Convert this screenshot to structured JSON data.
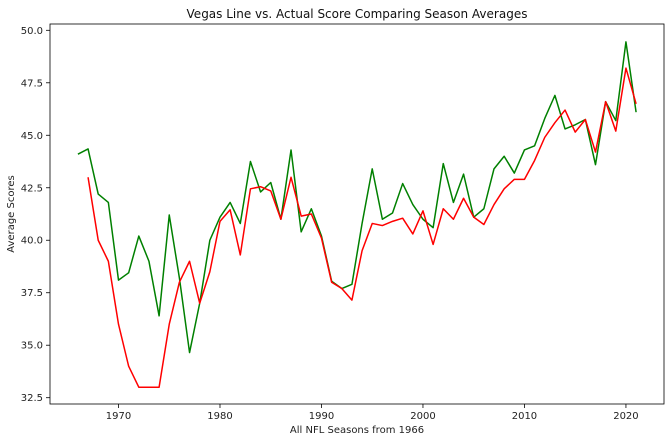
{
  "chart_data": {
    "type": "line",
    "title": "Vegas Line vs. Actual Score Comparing Season Averages",
    "xlabel": "All NFL Seasons from 1966",
    "ylabel": "Average Scores",
    "xlim": [
      1963.25,
      2023.75
    ],
    "ylim": [
      32.2,
      50.3
    ],
    "xticks": [
      1970,
      1980,
      1990,
      2000,
      2010,
      2020
    ],
    "yticks": [
      32.5,
      35.0,
      37.5,
      40.0,
      42.5,
      45.0,
      47.5,
      50.0
    ],
    "ytick_labels": [
      "32.5",
      "35.0",
      "37.5",
      "40.0",
      "42.5",
      "45.0",
      "47.5",
      "50.0"
    ],
    "grid": false,
    "series": [
      {
        "color": "#008000",
        "x": [
          1966,
          1967,
          1968,
          1969,
          1970,
          1971,
          1972,
          1973,
          1974,
          1975,
          1976,
          1977,
          1978,
          1979,
          1980,
          1981,
          1982,
          1983,
          1984,
          1985,
          1986,
          1987,
          1988,
          1989,
          1990,
          1991,
          1992,
          1993,
          1994,
          1995,
          1996,
          1997,
          1998,
          1999,
          2000,
          2001,
          2002,
          2003,
          2004,
          2005,
          2006,
          2007,
          2008,
          2009,
          2010,
          2011,
          2012,
          2013,
          2014,
          2015,
          2016,
          2017,
          2018,
          2019,
          2020,
          2021
        ],
        "values": [
          44.1,
          44.35,
          42.2,
          41.8,
          38.1,
          38.45,
          40.2,
          39.0,
          36.4,
          41.2,
          38.2,
          34.65,
          37.0,
          40.0,
          41.1,
          41.8,
          40.8,
          43.75,
          42.3,
          42.75,
          41.0,
          44.3,
          40.4,
          41.5,
          40.2,
          38.05,
          37.7,
          37.9,
          40.8,
          43.4,
          41.0,
          41.3,
          42.7,
          41.7,
          41.0,
          40.6,
          43.65,
          41.8,
          43.15,
          41.1,
          41.5,
          43.4,
          44.0,
          43.2,
          44.3,
          44.5,
          45.8,
          46.9,
          45.3,
          45.5,
          45.75,
          43.6,
          46.6,
          45.7,
          49.45,
          46.1
        ]
      },
      {
        "color": "#ff0000",
        "x": [
          1967,
          1968,
          1969,
          1970,
          1971,
          1972,
          1973,
          1974,
          1975,
          1976,
          1977,
          1978,
          1979,
          1980,
          1981,
          1982,
          1983,
          1984,
          1985,
          1986,
          1987,
          1988,
          1989,
          1990,
          1991,
          1992,
          1993,
          1994,
          1995,
          1996,
          1997,
          1998,
          1999,
          2000,
          2001,
          2002,
          2003,
          2004,
          2005,
          2006,
          2007,
          2008,
          2009,
          2010,
          2011,
          2012,
          2013,
          2014,
          2015,
          2016,
          2017,
          2018,
          2019,
          2020,
          2021
        ],
        "values": [
          43.0,
          40.0,
          39.0,
          36.0,
          34.0,
          33.0,
          33.0,
          33.0,
          36.0,
          38.0,
          39.0,
          37.0,
          38.5,
          40.9,
          41.45,
          39.3,
          42.45,
          42.55,
          42.35,
          41.0,
          43.0,
          41.15,
          41.25,
          40.1,
          38.0,
          37.7,
          37.15,
          39.5,
          40.8,
          40.7,
          40.9,
          41.05,
          40.3,
          41.4,
          39.8,
          41.5,
          41.0,
          42.0,
          41.1,
          40.75,
          41.7,
          42.45,
          42.9,
          42.9,
          43.8,
          44.9,
          45.6,
          46.2,
          45.15,
          45.75,
          44.2,
          46.6,
          45.2,
          48.2,
          46.5
        ]
      }
    ]
  }
}
